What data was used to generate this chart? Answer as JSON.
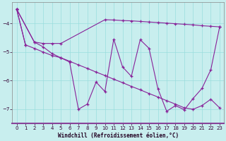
{
  "xlabel": "Windchill (Refroidissement éolien,°C)",
  "bg_color": "#c8eeee",
  "line_color": "#882299",
  "grid_color": "#99dddd",
  "x": [
    0,
    1,
    2,
    3,
    4,
    5,
    6,
    7,
    8,
    9,
    10,
    11,
    12,
    13,
    14,
    15,
    16,
    17,
    18,
    19,
    20,
    21,
    22,
    23
  ],
  "line1_x": [
    0,
    1
  ],
  "line1_y": [
    -3.5,
    -4.75
  ],
  "line2_x": [
    0,
    2,
    3,
    4,
    5,
    10,
    11,
    12,
    13,
    14,
    15,
    16,
    17,
    18,
    19,
    20,
    21,
    22,
    23
  ],
  "line2_y": [
    -3.5,
    -4.65,
    -4.7,
    -4.7,
    -4.7,
    -3.87,
    -3.88,
    -3.9,
    -3.91,
    -3.93,
    -3.95,
    -3.97,
    -3.99,
    -4.01,
    -4.03,
    -4.05,
    -4.08,
    -4.1,
    -4.12
  ],
  "line3_x": [
    0,
    1,
    2,
    3,
    4,
    5,
    6,
    7,
    8,
    9,
    10,
    11,
    12,
    13,
    14,
    15,
    16,
    17,
    18,
    19,
    20,
    21,
    22,
    23
  ],
  "line3_y": [
    -3.5,
    -4.75,
    -4.87,
    -5.0,
    -5.12,
    -5.2,
    -5.32,
    -5.45,
    -5.57,
    -5.7,
    -5.82,
    -5.95,
    -6.07,
    -6.2,
    -6.32,
    -6.45,
    -6.57,
    -6.7,
    -6.82,
    -6.95,
    -7.0,
    -6.87,
    -6.65,
    -6.95
  ],
  "line4_x": [
    0,
    2,
    3,
    4,
    5,
    6,
    7,
    8,
    9,
    10,
    11,
    12,
    13,
    14,
    15,
    16,
    17,
    18,
    19,
    20,
    21,
    22,
    23
  ],
  "line4_y": [
    -3.5,
    -4.65,
    -4.82,
    -5.05,
    -5.2,
    -5.35,
    -7.0,
    -6.82,
    -6.05,
    -6.38,
    -4.55,
    -5.52,
    -5.85,
    -4.57,
    -4.87,
    -6.28,
    -7.07,
    -6.87,
    -7.02,
    -6.62,
    -6.27,
    -5.62,
    -4.12
  ],
  "ylim": [
    -7.5,
    -3.25
  ],
  "xlim": [
    -0.5,
    23.5
  ],
  "yticks": [
    -7,
    -6,
    -5,
    -4
  ],
  "xticks": [
    0,
    1,
    2,
    3,
    4,
    5,
    6,
    7,
    8,
    9,
    10,
    11,
    12,
    13,
    14,
    15,
    16,
    17,
    18,
    19,
    20,
    21,
    22,
    23
  ],
  "xlabel_fontsize": 5.5,
  "tick_fontsize": 5.0,
  "lw": 0.8,
  "ms": 2.5
}
